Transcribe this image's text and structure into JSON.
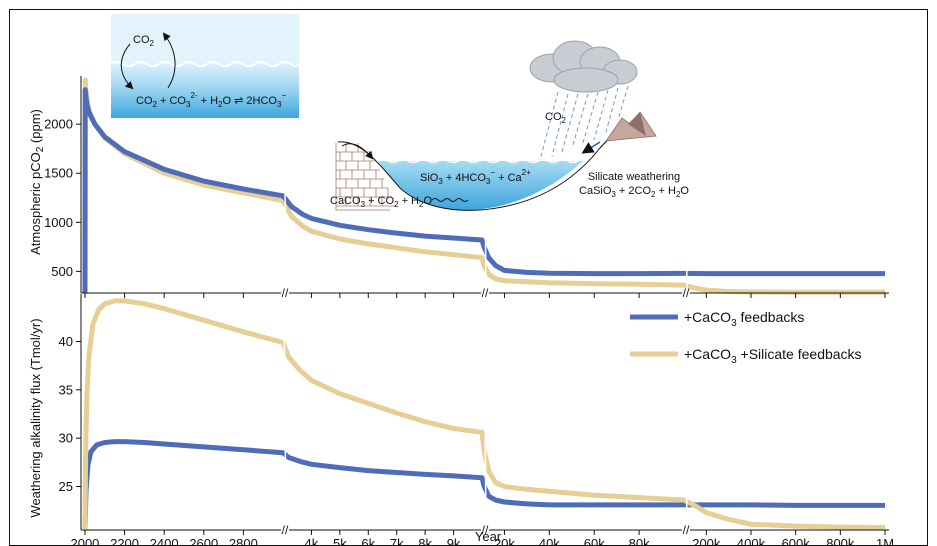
{
  "colors": {
    "caco3": "#4f6cb8",
    "silicate": "#e6cf94",
    "ocean_top": "#d6eef9",
    "ocean_mid": "#7cc6ea",
    "ocean_bot": "#36a2d8",
    "brick": "#a7786a",
    "cloud": "#c8ccd2",
    "rain": "#6d9bd3",
    "mountain": "#b09087"
  },
  "top_panel": {
    "ylabel_pre": "Atmospheric pCO",
    "ylabel_sub": "2",
    "ylabel_post": " (ppm)",
    "yticks": [
      "500",
      "1000",
      "1500",
      "2000"
    ]
  },
  "bottom_panel": {
    "ylabel": "Weathering alkalinity flux (Tmol/yr)",
    "yticks": [
      "25",
      "30",
      "35",
      "40"
    ]
  },
  "x_axis": {
    "label": "Year",
    "ticks": [
      "2000",
      "2200",
      "2400",
      "2600",
      "2800",
      "4k",
      "5k",
      "6k",
      "7k",
      "8k",
      "9k",
      "20k",
      "40k",
      "60k",
      "80k",
      "200k",
      "400k",
      "600k",
      "800k",
      "1M"
    ],
    "break_mark": "//"
  },
  "legend": {
    "caco3": {
      "main": "+CaCO",
      "sub": "3",
      "tail": " feedbacks"
    },
    "silicate": {
      "main": "+CaCO",
      "sub": "3",
      "tail": " +Silicate feedbacks"
    }
  },
  "inset_ocean": {
    "co2": {
      "main": "CO",
      "sub": "2"
    },
    "eq_a": {
      "main": "CO",
      "sub": "2"
    },
    "eq_b": {
      "main": " + CO",
      "sub": "3",
      "sup": "2-"
    },
    "eq_c": {
      "main": " + H",
      "sub": "2",
      "post": "O"
    },
    "eq_arrow": " ⇌ ",
    "eq_d": {
      "main": "2HCO",
      "sub": "3",
      "sup": "−"
    }
  },
  "inset_weathering": {
    "co2": {
      "main": "CO",
      "sub": "2"
    },
    "eq1_a": {
      "main": "SiO",
      "sub": "3"
    },
    "eq1_b": {
      "main": " + 4HCO",
      "sub": "3",
      "sup": "−"
    },
    "eq1_c": {
      "main": " + Ca",
      "sup": "2+"
    },
    "eq2_a": {
      "main": "CaCO",
      "sub": "3"
    },
    "eq2_b": {
      "main": " + CO",
      "sub": "2"
    },
    "eq2_c": {
      "main": " + H",
      "sub": "2",
      "post": "O"
    },
    "silicate_title": "Silicate weathering",
    "eq3_a": {
      "main": "CaSiO",
      "sub": "3"
    },
    "eq3_b": {
      "main": " + 2CO",
      "sub": "2"
    },
    "eq3_c": {
      "main": " + H",
      "sub": "2",
      "post": "O"
    }
  },
  "chart_data": [
    {
      "type": "line",
      "panel": "top",
      "ylabel": "Atmospheric pCO2 (ppm)",
      "ylim": [
        280,
        2450
      ],
      "x_segments": [
        {
          "range": [
            1980,
            3000
          ],
          "scale": "linear",
          "ticks": [
            2000,
            2200,
            2400,
            2600,
            2800
          ]
        },
        {
          "range": [
            3000,
            10000
          ],
          "scale": "linear",
          "ticks": [
            4000,
            5000,
            6000,
            7000,
            8000,
            9000
          ]
        },
        {
          "range": [
            10000,
            100000
          ],
          "scale": "linear",
          "ticks": [
            20000,
            40000,
            60000,
            80000
          ]
        },
        {
          "range": [
            100000,
            1000000
          ],
          "scale": "linear",
          "ticks": [
            200000,
            400000,
            600000,
            800000,
            1000000
          ]
        }
      ],
      "series": [
        {
          "name": "+CaCO3 feedbacks",
          "color_key": "caco3",
          "x": [
            2000,
            2001,
            2005,
            2010,
            2020,
            2050,
            2100,
            2200,
            2400,
            2600,
            2800,
            3000,
            3300,
            3700,
            4000,
            5000,
            6000,
            7000,
            8000,
            9000,
            10000,
            11000,
            13000,
            16000,
            20000,
            30000,
            40000,
            60000,
            80000,
            100000,
            200000,
            400000,
            600000,
            800000,
            1000000
          ],
          "y": [
            280,
            2350,
            2270,
            2200,
            2120,
            2000,
            1870,
            1720,
            1540,
            1420,
            1340,
            1270,
            1160,
            1080,
            1040,
            970,
            925,
            890,
            860,
            840,
            820,
            745,
            640,
            560,
            510,
            490,
            482,
            478,
            478,
            480,
            478,
            478,
            478,
            478,
            478
          ]
        },
        {
          "name": "+CaCO3 +Silicate feedbacks",
          "color_key": "silicate",
          "x": [
            2000,
            2001,
            2005,
            2010,
            2020,
            2050,
            2100,
            2200,
            2400,
            2600,
            2800,
            3000,
            3300,
            3700,
            4000,
            5000,
            6000,
            7000,
            8000,
            9000,
            10000,
            11000,
            13000,
            16000,
            20000,
            30000,
            40000,
            60000,
            80000,
            100000,
            150000,
            200000,
            300000,
            400000,
            600000,
            800000,
            1000000
          ],
          "y": [
            280,
            2450,
            2350,
            2260,
            2150,
            2000,
            1860,
            1700,
            1500,
            1380,
            1300,
            1220,
            1060,
            960,
            910,
            830,
            780,
            740,
            700,
            670,
            640,
            560,
            470,
            425,
            405,
            395,
            385,
            375,
            370,
            360,
            330,
            310,
            295,
            290,
            288,
            287,
            287
          ]
        }
      ]
    },
    {
      "type": "line",
      "panel": "bottom",
      "ylabel": "Weathering alkalinity flux (Tmol/yr)",
      "xlabel": "Year",
      "ylim": [
        20.5,
        44.5
      ],
      "x_segments": [
        {
          "range": [
            1980,
            3000
          ],
          "scale": "linear",
          "ticks": [
            2000,
            2200,
            2400,
            2600,
            2800
          ]
        },
        {
          "range": [
            3000,
            10000
          ],
          "scale": "linear",
          "ticks": [
            4000,
            5000,
            6000,
            7000,
            8000,
            9000
          ]
        },
        {
          "range": [
            10000,
            100000
          ],
          "scale": "linear",
          "ticks": [
            20000,
            40000,
            60000,
            80000
          ]
        },
        {
          "range": [
            100000,
            1000000
          ],
          "scale": "linear",
          "ticks": [
            200000,
            400000,
            600000,
            800000,
            1000000
          ]
        }
      ],
      "series": [
        {
          "name": "+CaCO3 feedbacks",
          "color_key": "caco3",
          "x": [
            2000,
            2005,
            2015,
            2030,
            2060,
            2100,
            2150,
            2200,
            2300,
            2400,
            2600,
            2800,
            3000,
            3200,
            3600,
            4000,
            5000,
            6000,
            7000,
            8000,
            9000,
            10000,
            11000,
            13000,
            16000,
            20000,
            30000,
            40000,
            60000,
            80000,
            100000,
            200000,
            400000,
            600000,
            800000,
            1000000
          ],
          "y": [
            20.6,
            24.5,
            27.2,
            28.6,
            29.3,
            29.55,
            29.65,
            29.65,
            29.55,
            29.4,
            29.1,
            28.8,
            28.5,
            28.0,
            27.6,
            27.3,
            26.95,
            26.65,
            26.45,
            26.25,
            26.1,
            25.9,
            25.0,
            24.0,
            23.6,
            23.4,
            23.2,
            23.1,
            23.1,
            23.1,
            23.1,
            23.1,
            23.1,
            23.05,
            23.05,
            23.05
          ]
        },
        {
          "name": "+CaCO3 +Silicate feedbacks",
          "color_key": "silicate",
          "x": [
            2000,
            2003,
            2010,
            2020,
            2040,
            2070,
            2100,
            2150,
            2200,
            2300,
            2400,
            2600,
            2800,
            3000,
            3200,
            3600,
            4000,
            5000,
            6000,
            7000,
            8000,
            9000,
            10000,
            11000,
            13000,
            16000,
            20000,
            30000,
            40000,
            60000,
            80000,
            100000,
            150000,
            200000,
            300000,
            400000,
            600000,
            800000,
            1000000
          ],
          "y": [
            20.6,
            28.5,
            34.5,
            38.5,
            41.8,
            43.3,
            43.9,
            44.2,
            44.2,
            43.9,
            43.4,
            42.2,
            41.0,
            39.9,
            38.4,
            37.0,
            36.0,
            34.6,
            33.6,
            32.6,
            31.7,
            31.0,
            30.6,
            28.6,
            26.6,
            25.4,
            25.0,
            24.7,
            24.5,
            24.1,
            23.85,
            23.6,
            23.0,
            22.3,
            21.6,
            21.1,
            20.9,
            20.8,
            20.75
          ]
        }
      ]
    }
  ]
}
